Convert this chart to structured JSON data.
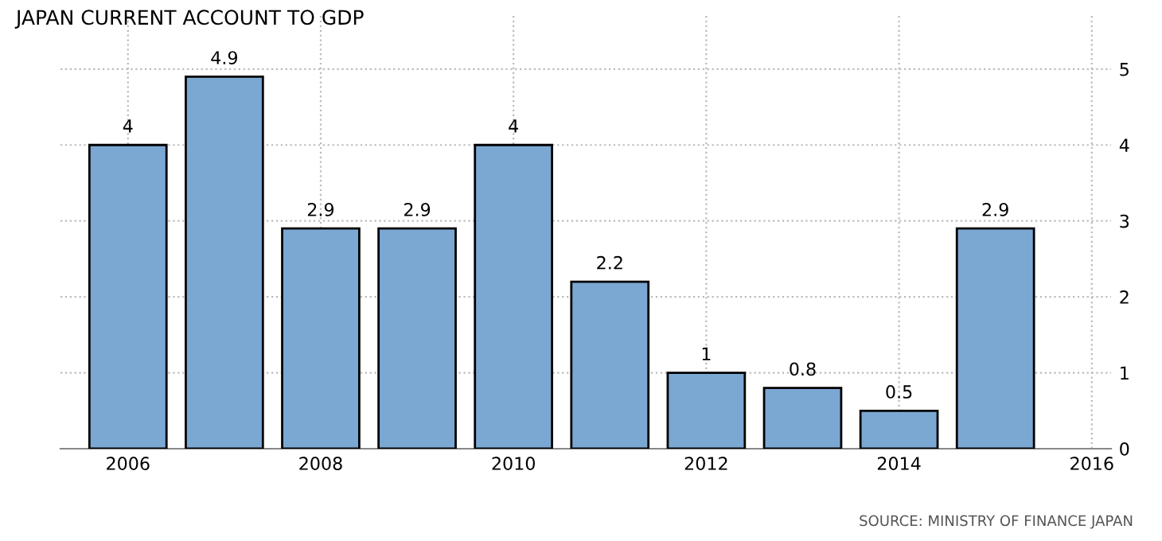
{
  "chart_data": {
    "type": "bar",
    "title": "JAPAN CURRENT ACCOUNT TO GDP",
    "x": [
      2006,
      2007,
      2008,
      2009,
      2010,
      2011,
      2012,
      2013,
      2014,
      2015
    ],
    "values": [
      4,
      4.9,
      2.9,
      2.9,
      4,
      2.2,
      1,
      0.8,
      0.5,
      2.9
    ],
    "color": "#7ba7d3",
    "xlim": [
      2005.3,
      2016.2
    ],
    "xticks": [
      2006,
      2008,
      2010,
      2012,
      2014,
      2016
    ],
    "ylim": [
      0,
      5.7
    ],
    "yticks": [
      0,
      1,
      2,
      3,
      4,
      5
    ],
    "grid": true,
    "data_labels": true,
    "annotations": [
      "SOURCE: MINISTRY OF FINANCE JAPAN"
    ]
  }
}
